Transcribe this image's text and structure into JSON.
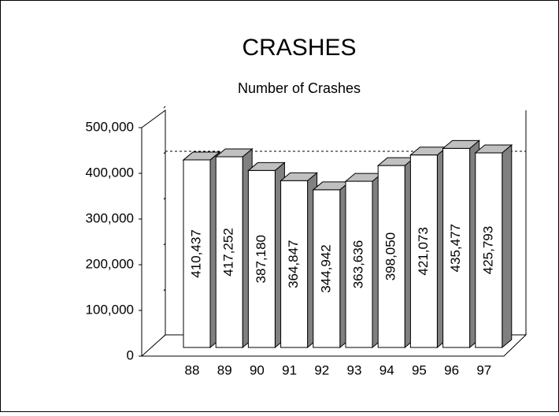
{
  "chart_data": {
    "type": "bar",
    "title": "CRASHES",
    "subtitle": "Number of Crashes",
    "categories": [
      "88",
      "89",
      "90",
      "91",
      "92",
      "93",
      "94",
      "95",
      "96",
      "97"
    ],
    "values": [
      410437,
      417252,
      387180,
      364847,
      344942,
      363636,
      398050,
      421073,
      435477,
      425793
    ],
    "value_labels": [
      "410,437",
      "417,252",
      "387,180",
      "364,847",
      "344,942",
      "363,636",
      "398,050",
      "421,073",
      "435,477",
      "425,793"
    ],
    "color": "#ffffff",
    "ylim": [
      0,
      500000
    ],
    "yticks": [
      0,
      {
        "value": 100000,
        "label": "100,000"
      },
      {
        "value": 200000,
        "label": "200,000"
      },
      {
        "value": 300000,
        "label": "300,000"
      },
      {
        "value": 400000,
        "label": "400,000"
      },
      {
        "value": 500000,
        "label": "500,000"
      }
    ]
  }
}
